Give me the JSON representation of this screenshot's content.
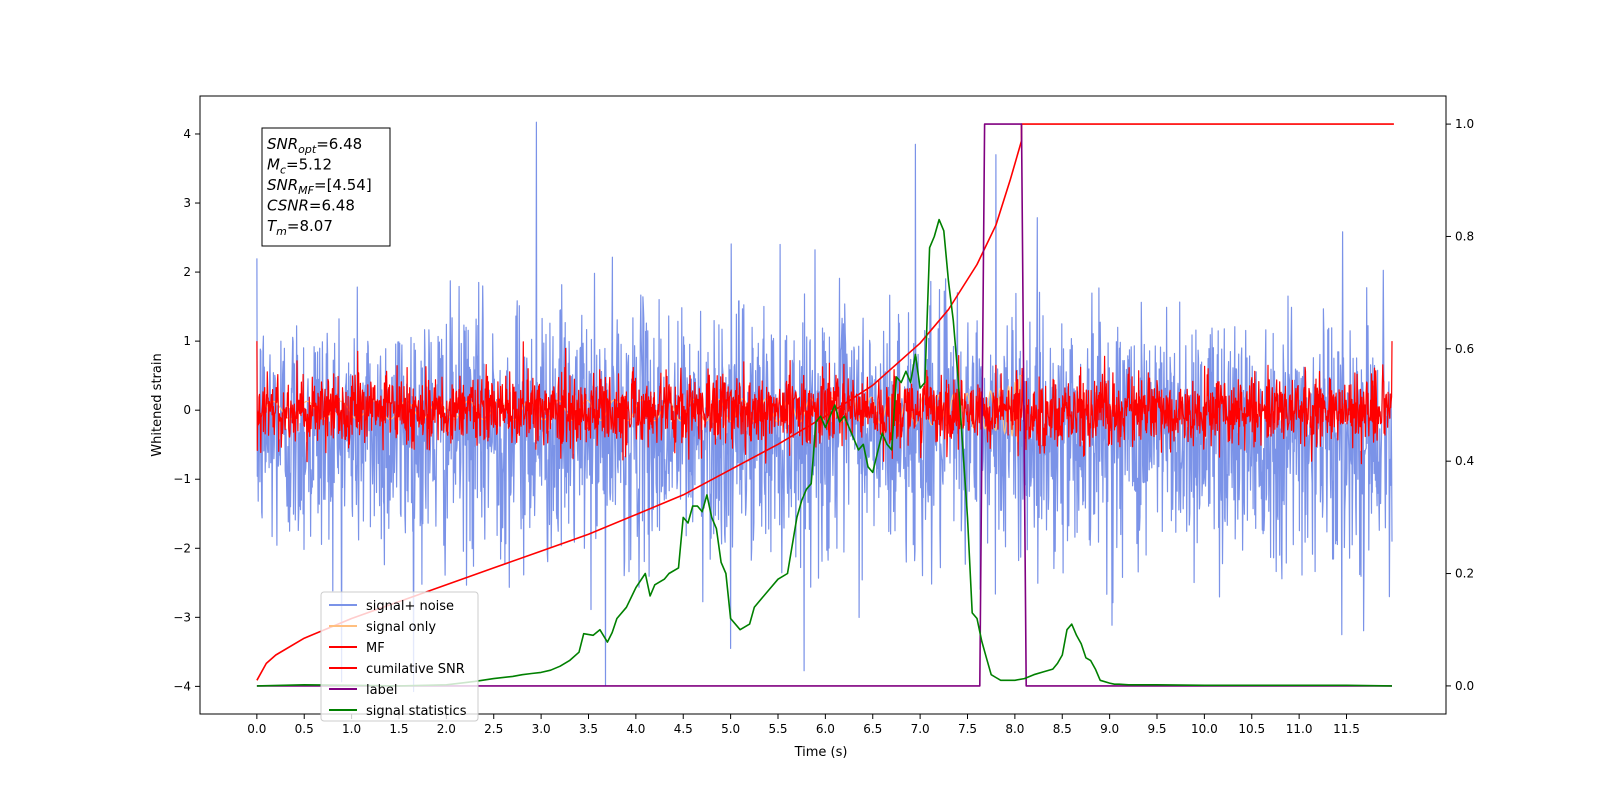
{
  "chart_data": {
    "type": "line",
    "title": "",
    "xlabel": "Time (s)",
    "ylabel": "Whitened strain",
    "y2label": "",
    "xlim": [
      -0.6,
      12.55
    ],
    "ylim": [
      -4.4,
      4.55
    ],
    "y2lim": [
      -0.05,
      1.05
    ],
    "x_ticks": [
      0.0,
      0.5,
      1.0,
      1.5,
      2.0,
      2.5,
      3.0,
      3.5,
      4.0,
      4.5,
      5.0,
      5.5,
      6.0,
      6.5,
      7.0,
      7.5,
      8.0,
      8.5,
      9.0,
      9.5,
      10.0,
      10.5,
      11.0,
      11.5
    ],
    "x_tick_labels": [
      "0.0",
      "0.5",
      "1.0",
      "1.5",
      "2.0",
      "2.5",
      "3.0",
      "3.5",
      "4.0",
      "4.5",
      "5.0",
      "5.5",
      "6.0",
      "6.5",
      "7.0",
      "7.5",
      "8.0",
      "8.5",
      "9.0",
      "9.5",
      "10.0",
      "10.5",
      "11.0",
      "11.5"
    ],
    "y_ticks": [
      -4,
      -3,
      -2,
      -1,
      0,
      1,
      2,
      3,
      4
    ],
    "y_tick_labels": [
      "−4",
      "−3",
      "−2",
      "−1",
      "0",
      "1",
      "2",
      "3",
      "4"
    ],
    "y2_ticks": [
      0.0,
      0.2,
      0.4,
      0.6,
      0.8,
      1.0
    ],
    "y2_tick_labels": [
      "0.0",
      "0.2",
      "0.4",
      "0.6",
      "0.8",
      "1.0"
    ],
    "grid": false,
    "legend_position": "lower-left",
    "annotation": {
      "lines": [
        {
          "base": "SNR",
          "sub": "opt",
          "value": "=6.48"
        },
        {
          "base": "M",
          "sub": "c",
          "value": "=5.12"
        },
        {
          "base": "SNR",
          "sub": "MF",
          "value": "=[4.54]"
        },
        {
          "base": "CSNR",
          "sub": "",
          "value": "=6.48"
        },
        {
          "base": "T",
          "sub": "m",
          "value": "=8.07"
        }
      ]
    },
    "legend": [
      {
        "label": "signal+ noise",
        "color": "#7b93e8"
      },
      {
        "label": "signal only",
        "color": "#ffbf7f"
      },
      {
        "label": "MF",
        "color": "#ff0000"
      },
      {
        "label": "cumilative SNR",
        "color": "#ff0000"
      },
      {
        "label": "label",
        "color": "#800080"
      },
      {
        "label": "signal statistics",
        "color": "#008000"
      }
    ],
    "series": [
      {
        "name": "signal+ noise",
        "axis": "left",
        "color": "#7b93e8",
        "kind": "noise",
        "x_range": [
          0.0,
          11.98
        ],
        "center": -0.3,
        "spread": 1.2,
        "notable_points": [
          [
            2.95,
            4.17
          ],
          [
            3.68,
            -3.98
          ],
          [
            5.0,
            -3.45
          ],
          [
            6.95,
            3.85
          ],
          [
            7.8,
            3.7
          ],
          [
            11.45,
            -3.25
          ]
        ]
      },
      {
        "name": "signal only",
        "axis": "left",
        "color": "#ffbf7f",
        "kind": "chirp",
        "x_range": [
          0.0,
          8.07
        ],
        "peak": 0.45
      },
      {
        "name": "MF",
        "axis": "left",
        "color": "#ff0000",
        "kind": "noise",
        "x_range": [
          0.0,
          11.98
        ],
        "center": 0.0,
        "spread": 0.35,
        "notable_points": [
          [
            0.0,
            1.0
          ],
          [
            7.8,
            0.65
          ],
          [
            11.98,
            1.0
          ]
        ]
      },
      {
        "name": "cumilative SNR",
        "axis": "right",
        "color": "#ff0000",
        "x": [
          0.0,
          0.1,
          0.2,
          0.5,
          1.0,
          1.5,
          2.0,
          2.5,
          3.0,
          3.5,
          4.0,
          4.5,
          5.0,
          5.5,
          6.0,
          6.5,
          7.0,
          7.3,
          7.6,
          7.8,
          7.95,
          8.07,
          8.07,
          12.0
        ],
        "y": [
          0.01,
          0.04,
          0.055,
          0.085,
          0.12,
          0.15,
          0.18,
          0.21,
          0.24,
          0.27,
          0.305,
          0.34,
          0.385,
          0.43,
          0.48,
          0.535,
          0.61,
          0.67,
          0.75,
          0.82,
          0.9,
          0.97,
          1.0,
          1.0
        ]
      },
      {
        "name": "label",
        "axis": "right",
        "color": "#800080",
        "x": [
          0.0,
          7.63,
          7.68,
          8.07,
          8.12,
          11.98
        ],
        "y": [
          0.0,
          0.0,
          1.0,
          1.0,
          0.0,
          0.0
        ]
      },
      {
        "name": "signal statistics",
        "axis": "right",
        "color": "#008000",
        "x": [
          0.0,
          0.5,
          1.0,
          1.5,
          2.0,
          2.3,
          2.5,
          2.7,
          2.8,
          2.9,
          3.0,
          3.1,
          3.2,
          3.3,
          3.4,
          3.45,
          3.55,
          3.62,
          3.7,
          3.75,
          3.8,
          3.9,
          4.0,
          4.1,
          4.15,
          4.2,
          4.3,
          4.35,
          4.45,
          4.5,
          4.55,
          4.6,
          4.65,
          4.7,
          4.75,
          4.8,
          4.85,
          4.9,
          4.95,
          5.0,
          5.1,
          5.2,
          5.25,
          5.3,
          5.4,
          5.5,
          5.6,
          5.7,
          5.75,
          5.8,
          5.85,
          5.9,
          5.95,
          6.0,
          6.05,
          6.1,
          6.15,
          6.2,
          6.3,
          6.35,
          6.4,
          6.45,
          6.5,
          6.6,
          6.65,
          6.7,
          6.75,
          6.8,
          6.85,
          6.9,
          6.95,
          7.0,
          7.05,
          7.1,
          7.15,
          7.2,
          7.25,
          7.3,
          7.35,
          7.4,
          7.5,
          7.55,
          7.6,
          7.65,
          7.7,
          7.75,
          7.8,
          7.85,
          7.9,
          8.0,
          8.1,
          8.2,
          8.3,
          8.4,
          8.45,
          8.5,
          8.55,
          8.6,
          8.65,
          8.7,
          8.75,
          8.8,
          8.85,
          8.9,
          9.0,
          9.05,
          9.1,
          9.2,
          9.3,
          9.5,
          10.0,
          10.5,
          10.8,
          11.0,
          11.5,
          11.98
        ],
        "y": [
          0.0,
          0.002,
          0.001,
          0.0,
          0.002,
          0.008,
          0.013,
          0.017,
          0.02,
          0.022,
          0.024,
          0.028,
          0.035,
          0.045,
          0.06,
          0.093,
          0.09,
          0.1,
          0.078,
          0.095,
          0.12,
          0.14,
          0.175,
          0.2,
          0.16,
          0.18,
          0.19,
          0.2,
          0.21,
          0.3,
          0.29,
          0.32,
          0.32,
          0.31,
          0.34,
          0.3,
          0.28,
          0.22,
          0.2,
          0.12,
          0.1,
          0.11,
          0.14,
          0.15,
          0.17,
          0.19,
          0.2,
          0.3,
          0.33,
          0.35,
          0.36,
          0.47,
          0.48,
          0.46,
          0.48,
          0.5,
          0.47,
          0.48,
          0.44,
          0.42,
          0.43,
          0.39,
          0.38,
          0.45,
          0.43,
          0.42,
          0.55,
          0.54,
          0.56,
          0.54,
          0.59,
          0.53,
          0.54,
          0.78,
          0.8,
          0.83,
          0.81,
          0.72,
          0.65,
          0.55,
          0.3,
          0.13,
          0.12,
          0.08,
          0.05,
          0.02,
          0.015,
          0.01,
          0.01,
          0.01,
          0.013,
          0.02,
          0.025,
          0.03,
          0.04,
          0.055,
          0.1,
          0.11,
          0.09,
          0.075,
          0.05,
          0.045,
          0.03,
          0.01,
          0.005,
          0.003,
          0.003,
          0.002,
          0.002,
          0.002,
          0.001,
          0.001,
          0.001,
          0.001,
          0.001,
          0.0
        ]
      }
    ]
  }
}
